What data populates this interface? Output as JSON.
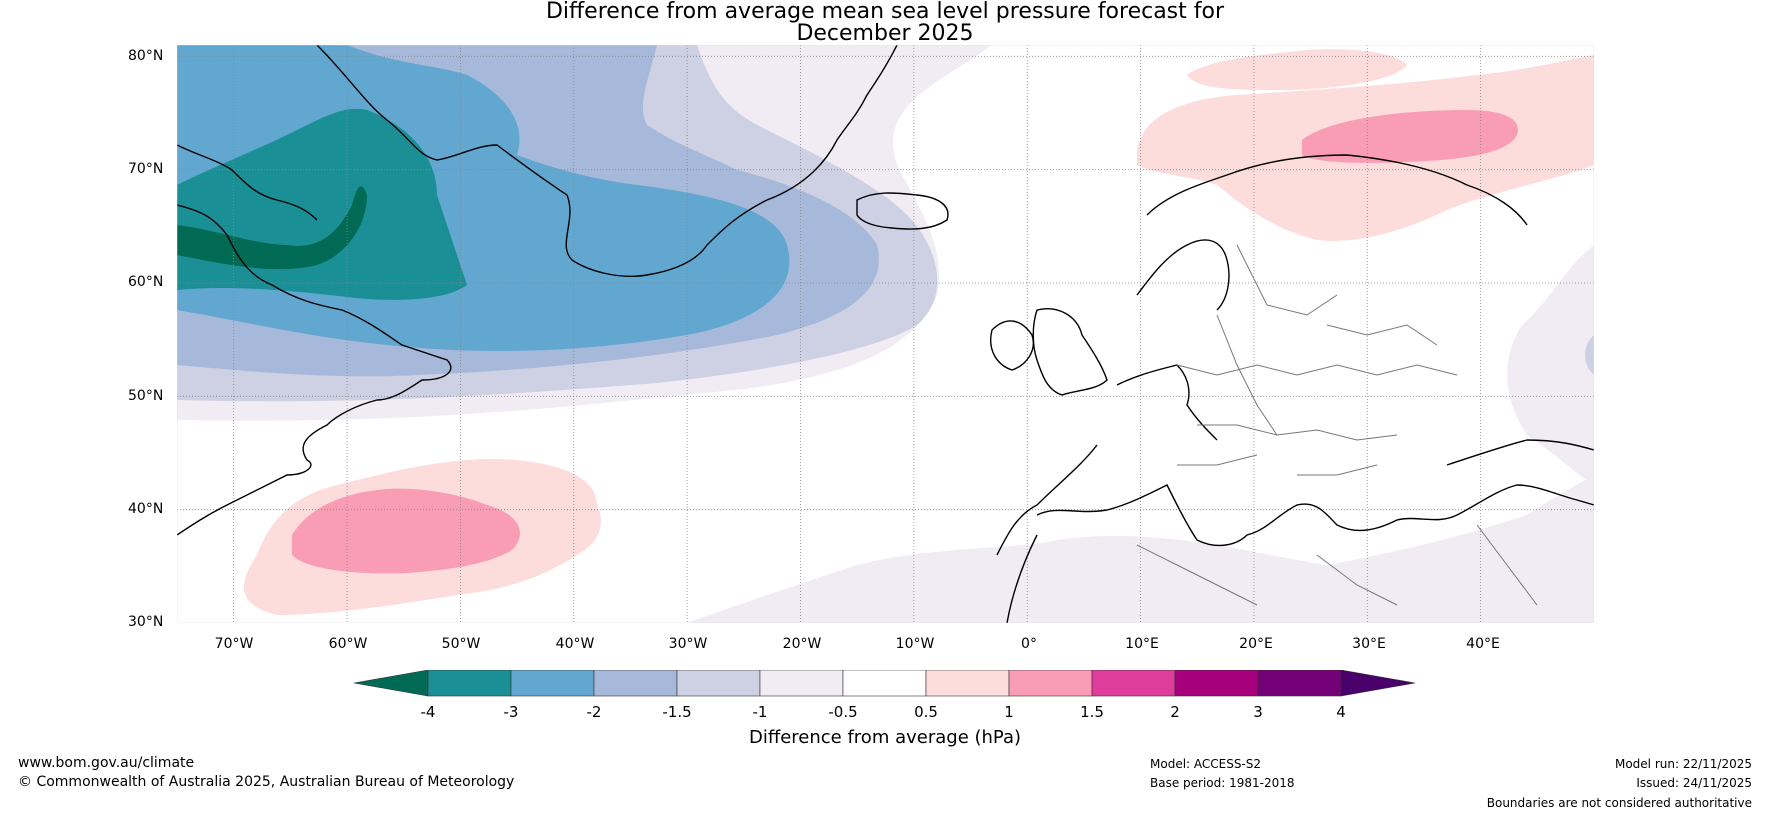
{
  "title": {
    "line1": "Difference from average mean sea level pressure forecast for",
    "line2": "December 2025"
  },
  "map": {
    "lat_labels": [
      "80°N",
      "70°N",
      "60°N",
      "50°N",
      "40°N",
      "30°N"
    ],
    "lon_labels": [
      "70°W",
      "60°W",
      "50°W",
      "40°W",
      "30°W",
      "20°W",
      "10°W",
      "0°",
      "10°E",
      "20°E",
      "30°E",
      "40°E"
    ],
    "extent": {
      "lon_min": -75,
      "lon_max": 50,
      "lat_min": 30,
      "lat_max": 81
    }
  },
  "colorbar": {
    "ticks": [
      "-4",
      "-3",
      "-2",
      "-1.5",
      "-1",
      "-0.5",
      "0.5",
      "1",
      "1.5",
      "2",
      "3",
      "4"
    ],
    "label": "Difference from average (hPa)",
    "colors": {
      "below_min": "#006a55",
      "bins": [
        "#1a8f96",
        "#62a7cf",
        "#a6b9da",
        "#ced0e3",
        "#f1ecf4",
        "#ffffff",
        "#fddcdc",
        "#f99db6",
        "#de3d9c",
        "#a6007c",
        "#740077"
      ],
      "above_max": "#4a006a"
    }
  },
  "footer": {
    "website": "www.bom.gov.au/climate",
    "copyright": "© Commonwealth of Australia 2025, Australian Bureau of Meteorology",
    "model": "Model: ACCESS-S2",
    "base_period": "Base period: 1981-2018",
    "model_run": "Model run: 22/11/2025",
    "issued": "Issued: 24/11/2025",
    "disclaimer": "Boundaries are not considered authoritative"
  }
}
